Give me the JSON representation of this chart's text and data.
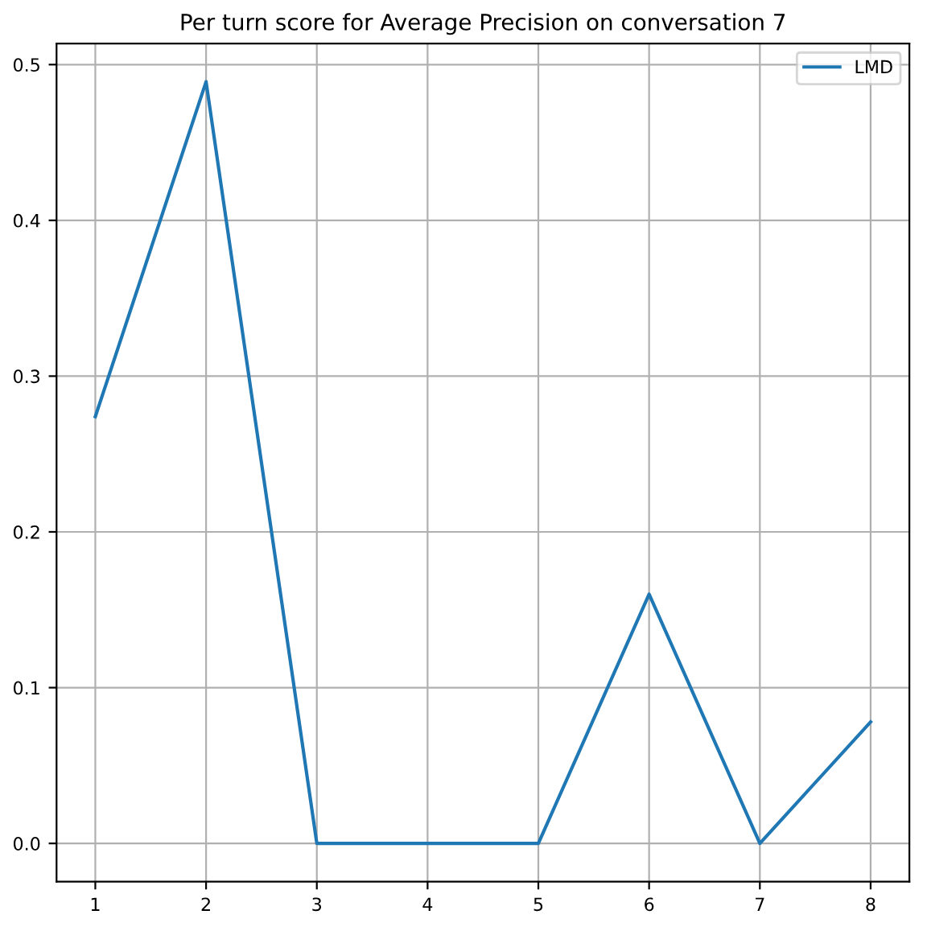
{
  "chart_data": {
    "type": "line",
    "title": "Per turn score for Average Precision on conversation 7",
    "x": [
      1,
      2,
      3,
      4,
      5,
      6,
      7,
      8
    ],
    "series": [
      {
        "name": "LMD",
        "color": "#1f77b4",
        "values": [
          0.274,
          0.489,
          0.0,
          0.0,
          0.0,
          0.16,
          0.0,
          0.078
        ]
      }
    ],
    "xlim": [
      0.65,
      8.35
    ],
    "xticks": [
      1,
      2,
      3,
      4,
      5,
      6,
      7,
      8
    ],
    "ylim": [
      -0.0245,
      0.5135
    ],
    "yticks": [
      {
        "value": 0.0,
        "label": "0.0"
      },
      0.1,
      0.2,
      0.3,
      0.4,
      0.5
    ],
    "grid": true,
    "legend": "top right",
    "marker": "none",
    "line_style": "solid"
  }
}
